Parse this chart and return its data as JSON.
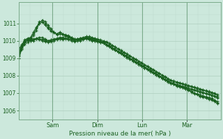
{
  "background_color": "#cce8dc",
  "grid_color_major": "#a8c8b8",
  "grid_color_minor": "#bcd8cc",
  "line_color": "#1a6020",
  "ylabel_text": "Pression niveau de la mer( hPa )",
  "ylim": [
    1005.5,
    1012.2
  ],
  "yticks": [
    1006,
    1007,
    1008,
    1009,
    1010,
    1011
  ],
  "day_labels": [
    "Sam",
    "Dim",
    "Lun",
    "Mar"
  ],
  "day_positions": [
    42,
    98,
    154,
    210
  ],
  "total_hours": 216,
  "series": [
    [
      1009.5,
      1009.7,
      1009.9,
      1010.0,
      1010.05,
      1010.0,
      1010.1,
      1010.1,
      1010.1,
      1010.05,
      1010.0,
      1010.05,
      1010.05,
      1010.1,
      1010.1,
      1010.15,
      1010.15,
      1010.1,
      1010.1,
      1010.05,
      1010.1,
      1010.1,
      1010.15,
      1010.2,
      1010.2,
      1010.15,
      1010.1,
      1010.05,
      1010.0,
      1009.95,
      1009.9,
      1009.8,
      1009.7,
      1009.6,
      1009.5,
      1009.4,
      1009.3,
      1009.2,
      1009.1,
      1009.0,
      1008.9,
      1008.8,
      1008.7,
      1008.6,
      1008.5,
      1008.4,
      1008.3,
      1008.2,
      1008.1,
      1008.0,
      1007.9,
      1007.8,
      1007.7,
      1007.65,
      1007.6,
      1007.55,
      1007.5,
      1007.45,
      1007.4,
      1007.35,
      1007.3,
      1007.25,
      1007.2,
      1007.15,
      1007.1,
      1007.05,
      1007.0,
      1006.95,
      1006.85
    ],
    [
      1009.5,
      1009.8,
      1010.0,
      1010.1,
      1010.15,
      1010.1,
      1010.15,
      1010.2,
      1010.2,
      1010.1,
      1010.0,
      1010.05,
      1010.1,
      1010.15,
      1010.2,
      1010.2,
      1010.25,
      1010.2,
      1010.2,
      1010.1,
      1010.1,
      1010.15,
      1010.2,
      1010.25,
      1010.25,
      1010.2,
      1010.15,
      1010.1,
      1010.05,
      1010.0,
      1009.95,
      1009.85,
      1009.75,
      1009.65,
      1009.55,
      1009.45,
      1009.35,
      1009.25,
      1009.15,
      1009.05,
      1008.95,
      1008.85,
      1008.75,
      1008.65,
      1008.55,
      1008.45,
      1008.35,
      1008.25,
      1008.15,
      1008.05,
      1007.95,
      1007.85,
      1007.75,
      1007.7,
      1007.65,
      1007.6,
      1007.55,
      1007.5,
      1007.45,
      1007.4,
      1007.35,
      1007.3,
      1007.25,
      1007.2,
      1007.15,
      1007.1,
      1007.05,
      1007.0,
      1006.9
    ],
    [
      1009.4,
      1009.6,
      1009.9,
      1010.0,
      1010.0,
      1010.05,
      1010.1,
      1010.1,
      1010.05,
      1010.0,
      1010.0,
      1010.0,
      1010.05,
      1010.1,
      1010.15,
      1010.1,
      1010.15,
      1010.1,
      1010.05,
      1010.0,
      1010.05,
      1010.05,
      1010.1,
      1010.15,
      1010.15,
      1010.1,
      1010.05,
      1010.0,
      1009.95,
      1009.9,
      1009.8,
      1009.7,
      1009.6,
      1009.5,
      1009.4,
      1009.3,
      1009.2,
      1009.1,
      1009.0,
      1008.9,
      1008.8,
      1008.7,
      1008.6,
      1008.5,
      1008.4,
      1008.3,
      1008.2,
      1008.1,
      1008.0,
      1007.9,
      1007.8,
      1007.7,
      1007.6,
      1007.55,
      1007.5,
      1007.45,
      1007.4,
      1007.35,
      1007.3,
      1007.25,
      1007.2,
      1007.15,
      1007.1,
      1007.05,
      1007.0,
      1006.95,
      1006.9,
      1006.85,
      1006.75
    ],
    [
      1009.3,
      1009.5,
      1009.8,
      1009.9,
      1010.0,
      1010.05,
      1010.1,
      1010.05,
      1010.0,
      1009.95,
      1009.9,
      1009.95,
      1010.0,
      1010.05,
      1010.1,
      1010.05,
      1010.1,
      1010.05,
      1010.0,
      1009.95,
      1010.0,
      1010.0,
      1010.05,
      1010.1,
      1010.1,
      1010.05,
      1010.0,
      1009.95,
      1009.9,
      1009.85,
      1009.75,
      1009.65,
      1009.55,
      1009.45,
      1009.35,
      1009.25,
      1009.15,
      1009.05,
      1008.95,
      1008.85,
      1008.75,
      1008.65,
      1008.55,
      1008.45,
      1008.35,
      1008.25,
      1008.15,
      1008.05,
      1007.95,
      1007.85,
      1007.75,
      1007.65,
      1007.55,
      1007.5,
      1007.45,
      1007.4,
      1007.35,
      1007.3,
      1007.25,
      1007.2,
      1007.15,
      1007.1,
      1007.05,
      1007.0,
      1006.95,
      1006.9,
      1006.85,
      1006.8,
      1006.7
    ],
    [
      1009.2,
      1009.7,
      1010.05,
      1010.15,
      1010.2,
      1010.5,
      1010.8,
      1011.0,
      1011.2,
      1011.1,
      1010.9,
      1010.7,
      1010.5,
      1010.4,
      1010.5,
      1010.4,
      1010.3,
      1010.2,
      1010.1,
      1010.0,
      1010.05,
      1010.1,
      1010.15,
      1010.2,
      1010.1,
      1010.05,
      1010.0,
      1009.95,
      1009.9,
      1009.85,
      1009.75,
      1009.65,
      1009.55,
      1009.45,
      1009.35,
      1009.25,
      1009.15,
      1009.05,
      1008.95,
      1008.85,
      1008.75,
      1008.65,
      1008.55,
      1008.45,
      1008.35,
      1008.25,
      1008.15,
      1008.05,
      1007.95,
      1007.85,
      1007.75,
      1007.65,
      1007.55,
      1007.5,
      1007.4,
      1007.35,
      1007.3,
      1007.25,
      1007.2,
      1007.1,
      1007.0,
      1006.95,
      1006.9,
      1006.85,
      1006.8,
      1006.75,
      1006.7,
      1006.6,
      1006.5
    ],
    [
      1009.1,
      1009.6,
      1010.0,
      1010.1,
      1010.15,
      1010.4,
      1010.7,
      1011.1,
      1011.1,
      1011.0,
      1010.8,
      1010.6,
      1010.5,
      1010.4,
      1010.45,
      1010.4,
      1010.35,
      1010.3,
      1010.2,
      1010.1,
      1010.1,
      1010.15,
      1010.15,
      1010.2,
      1010.1,
      1010.05,
      1010.05,
      1010.0,
      1009.95,
      1009.9,
      1009.8,
      1009.7,
      1009.6,
      1009.5,
      1009.4,
      1009.3,
      1009.2,
      1009.1,
      1009.0,
      1008.9,
      1008.8,
      1008.7,
      1008.6,
      1008.5,
      1008.4,
      1008.3,
      1008.2,
      1008.1,
      1008.0,
      1007.9,
      1007.8,
      1007.7,
      1007.6,
      1007.55,
      1007.45,
      1007.4,
      1007.35,
      1007.3,
      1007.2,
      1007.1,
      1007.0,
      1006.95,
      1006.85,
      1006.8,
      1006.75,
      1006.7,
      1006.65,
      1006.55,
      1006.45
    ],
    [
      1009.0,
      1009.5,
      1009.95,
      1010.05,
      1010.1,
      1010.3,
      1010.6,
      1011.0,
      1011.05,
      1010.9,
      1010.7,
      1010.55,
      1010.45,
      1010.35,
      1010.4,
      1010.35,
      1010.3,
      1010.25,
      1010.15,
      1010.05,
      1010.05,
      1010.1,
      1010.1,
      1010.15,
      1010.05,
      1010.0,
      1010.0,
      1009.95,
      1009.9,
      1009.85,
      1009.75,
      1009.65,
      1009.55,
      1009.45,
      1009.35,
      1009.25,
      1009.15,
      1009.05,
      1008.95,
      1008.85,
      1008.75,
      1008.65,
      1008.55,
      1008.45,
      1008.35,
      1008.25,
      1008.15,
      1008.05,
      1007.95,
      1007.85,
      1007.75,
      1007.65,
      1007.55,
      1007.5,
      1007.4,
      1007.35,
      1007.3,
      1007.25,
      1007.15,
      1007.05,
      1006.95,
      1006.9,
      1006.8,
      1006.75,
      1006.7,
      1006.65,
      1006.6,
      1006.5,
      1006.4
    ]
  ]
}
